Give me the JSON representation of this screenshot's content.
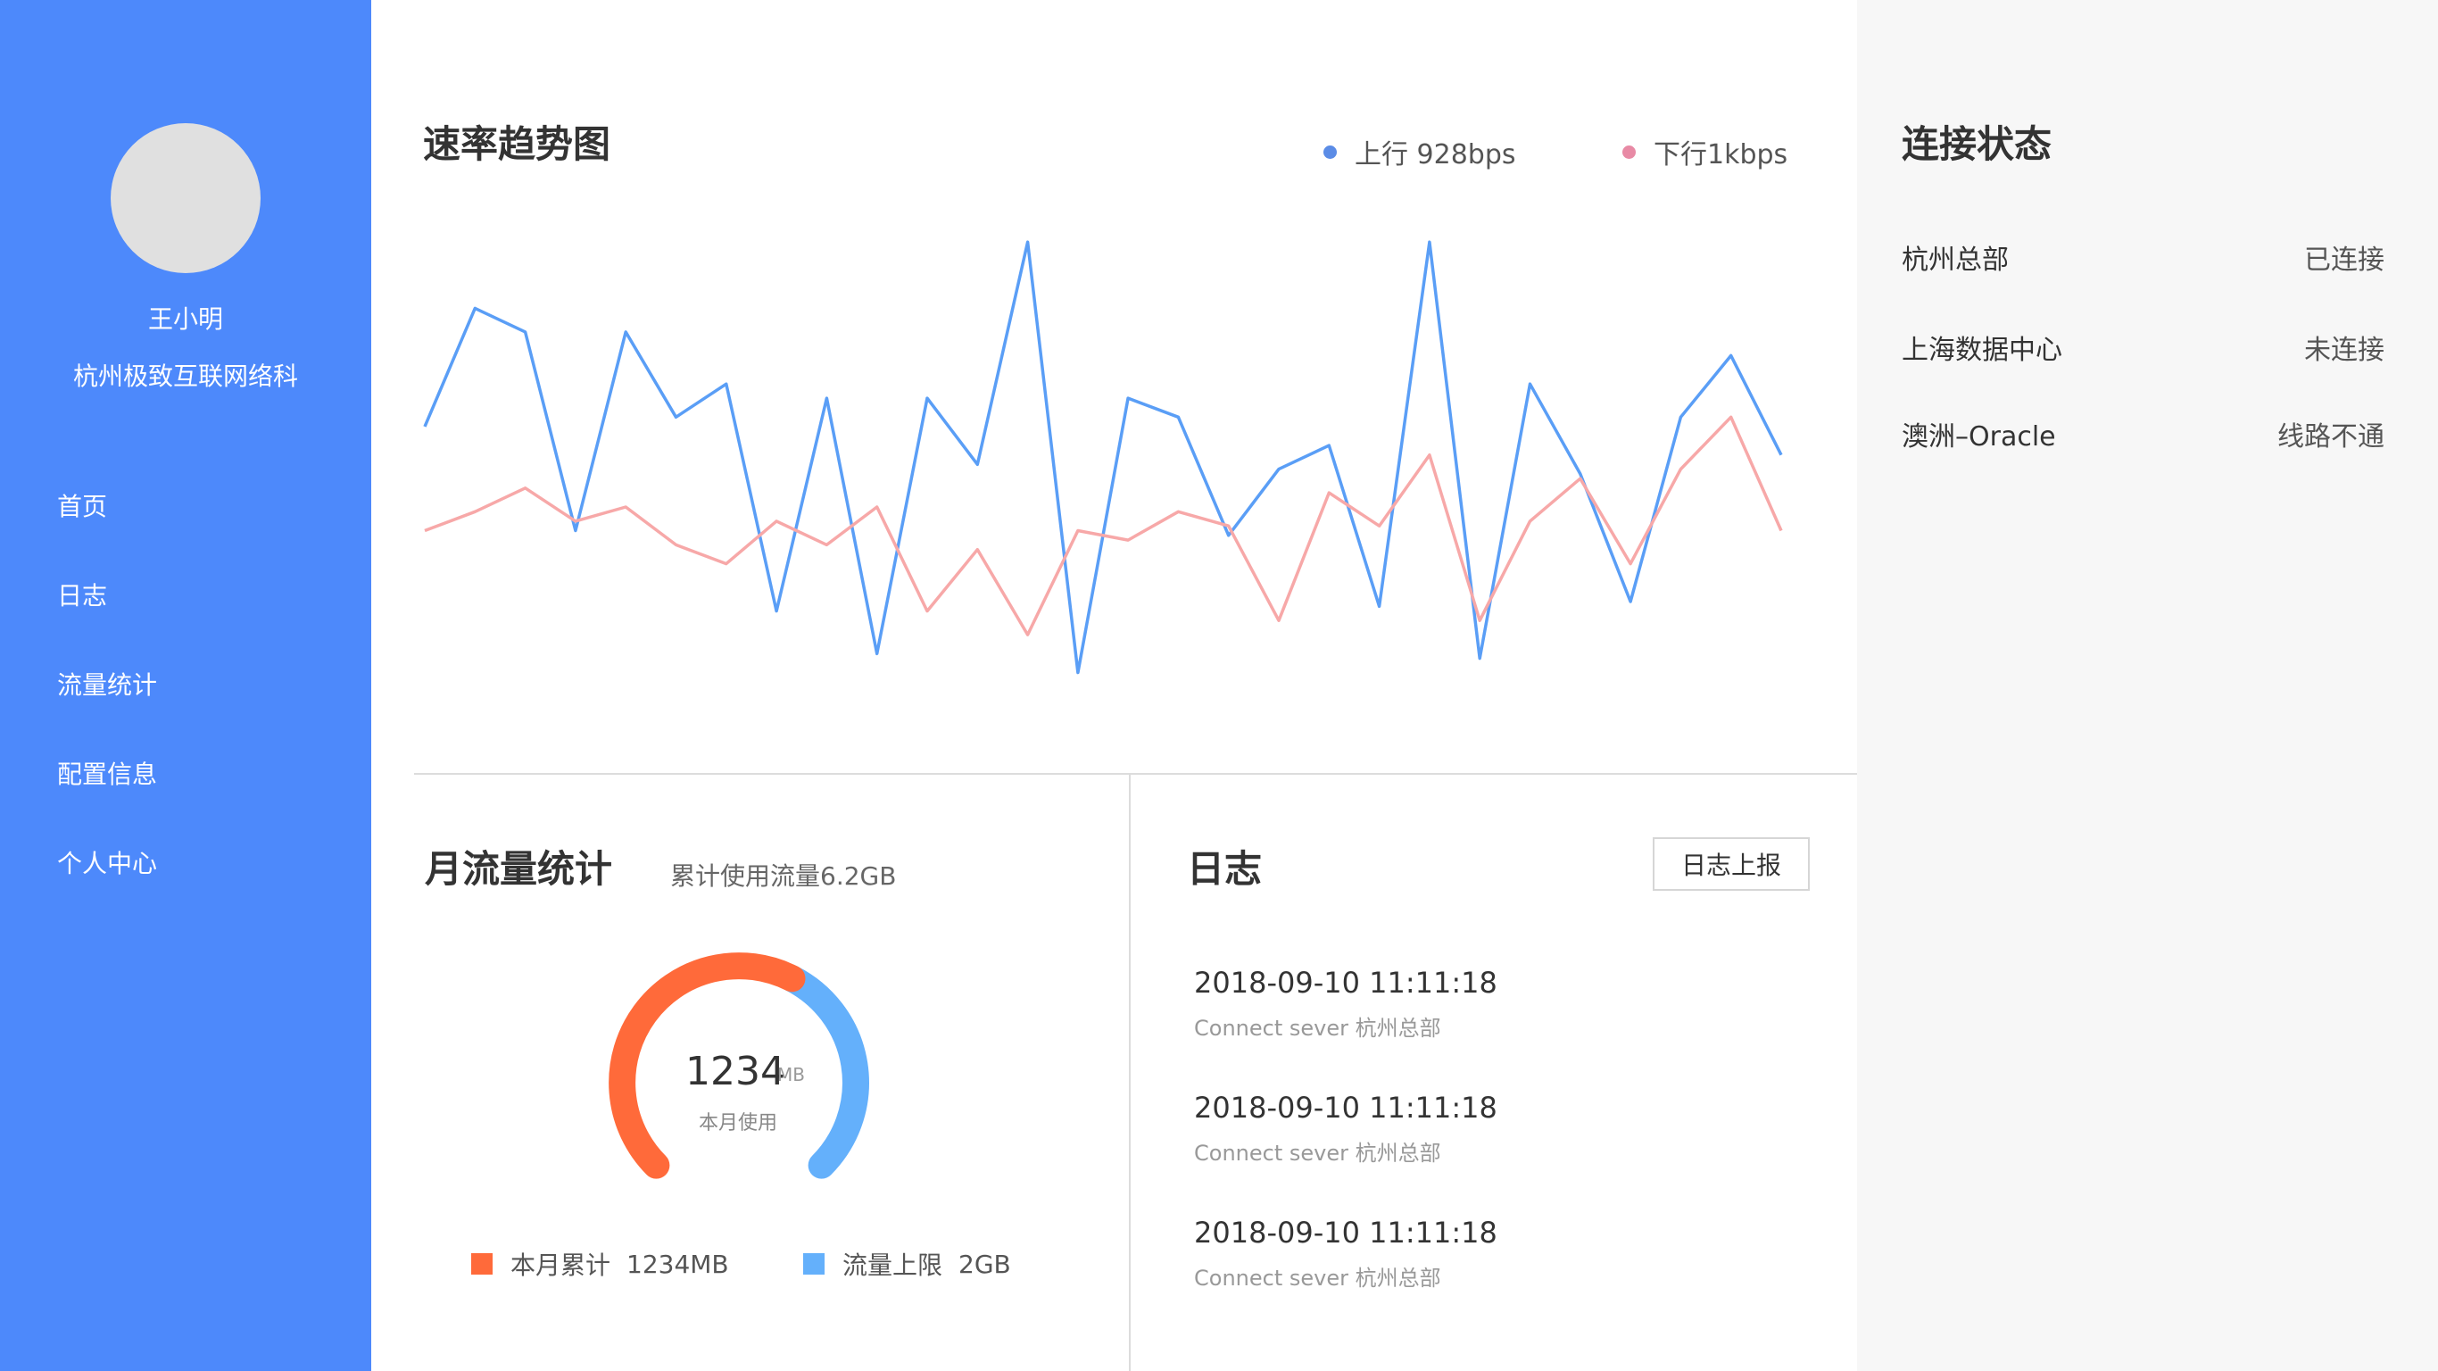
{
  "user": {
    "name": "王小明",
    "org": "杭州极致互联网络科"
  },
  "nav": {
    "items": [
      {
        "label": "首页"
      },
      {
        "label": "日志"
      },
      {
        "label": "流量统计"
      },
      {
        "label": "配置信息"
      },
      {
        "label": "个人中心"
      }
    ]
  },
  "rate_chart": {
    "title": "速率趋势图",
    "legend_up": "上行 928bps",
    "legend_down": "下行1kbps",
    "colors": {
      "up": "#5a9ef6",
      "down": "#f7a8a8",
      "up_dot": "#5b8ce6",
      "down_dot": "#e88aa5"
    }
  },
  "chart_data": {
    "type": "line",
    "title": "速率趋势图",
    "series": [
      {
        "name": "上行 928bps",
        "values": [
          57,
          82,
          77,
          35,
          77,
          59,
          66,
          18,
          63,
          9,
          63,
          49,
          96,
          5,
          63,
          59,
          34,
          48,
          53,
          19,
          96,
          8,
          66,
          47,
          20,
          59,
          72,
          51
        ]
      },
      {
        "name": "下行1kbps",
        "values": [
          35,
          39,
          44,
          37,
          40,
          32,
          28,
          37,
          32,
          40,
          18,
          31,
          13,
          35,
          33,
          39,
          36,
          16,
          43,
          36,
          51,
          16,
          37,
          46,
          28,
          48,
          59,
          35
        ]
      }
    ],
    "ylim": [
      0,
      100
    ],
    "grid": false
  },
  "monthly": {
    "title": "月流量统计",
    "total_label": "累计使用流量6.2GB",
    "gauge_value": "1234",
    "gauge_unit": "MB",
    "gauge_caption": "本月使用",
    "used_fraction": 0.6,
    "legend_used_label": "本月累计",
    "legend_used_value": "1234MB",
    "legend_limit_label": "流量上限",
    "legend_limit_value": "2GB",
    "colors": {
      "used": "#ff6a3a",
      "limit": "#64b0fb"
    }
  },
  "log": {
    "title": "日志",
    "button_label": "日志上报",
    "entries": [
      {
        "time": "2018-09-10 11:11:18",
        "message": "Connect sever 杭州总部"
      },
      {
        "time": "2018-09-10 11:11:18",
        "message": "Connect sever 杭州总部"
      },
      {
        "time": "2018-09-10 11:11:18",
        "message": "Connect sever 杭州总部"
      }
    ]
  },
  "connection": {
    "title": "连接状态",
    "rows": [
      {
        "name": "杭州总部",
        "status": "已连接"
      },
      {
        "name": "上海数据中心",
        "status": "未连接"
      },
      {
        "name": "澳洲–Oracle",
        "status": "线路不通"
      }
    ]
  }
}
